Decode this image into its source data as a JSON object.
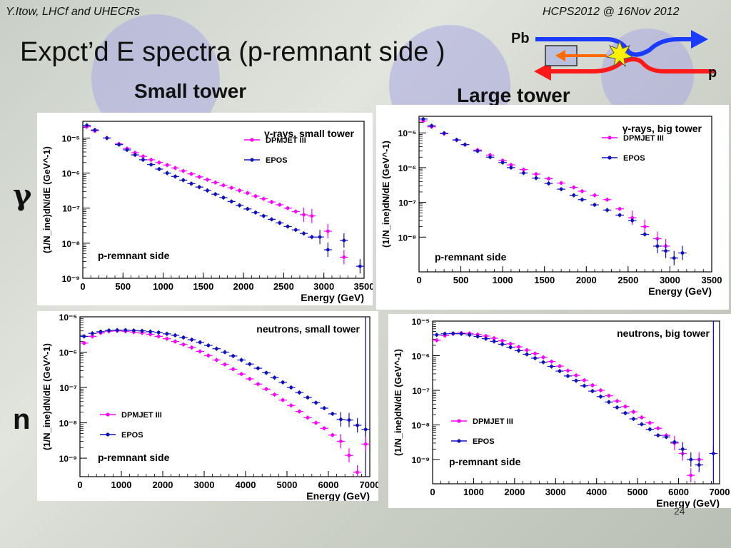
{
  "header": {
    "left": "Y.Itow,  LHCf and UHECRs",
    "right": "HCPS2012 @ 16Nov 2012"
  },
  "slide": {
    "title": "Expct’d E spectra (p-remnant side )",
    "small_tower_label": "Small tower",
    "large_tower_label": "Large tower",
    "row_gamma": "γ",
    "row_neutron": "n",
    "page_number": "24"
  },
  "diagram": {
    "pb_label": "Pb",
    "p_label": "p",
    "colors": {
      "pb": "#1a3bff",
      "p": "#ff1a1a",
      "arrow": "#ff6a00",
      "flash": "#fff200"
    }
  },
  "colors": {
    "dpmjet": "#ff00ff",
    "epos": "#1010c0"
  },
  "chart_data": [
    {
      "type": "scatter",
      "title": "γ-rays, small tower",
      "annotation": "p-remnant side",
      "xlabel": "Energy (GeV)",
      "ylabel": "(1/N_ine)dN/dE (GeV^-1)",
      "xlim": [
        0,
        3500
      ],
      "ylim": [
        1e-09,
        3e-05
      ],
      "yscale": "log",
      "xticks": [
        0,
        500,
        1000,
        1500,
        2000,
        2500,
        3000,
        3500
      ],
      "yticks": [
        {
          "v": 1e-09,
          "t": "10⁻⁹"
        },
        {
          "v": 1e-08,
          "t": "10⁻⁸"
        },
        {
          "v": 1e-07,
          "t": "10⁻⁷"
        },
        {
          "v": 1e-06,
          "t": "10⁻⁶"
        },
        {
          "v": 1e-05,
          "t": "10⁻⁵"
        }
      ],
      "legend_position": "top-right",
      "series": [
        {
          "name": "DPMJET III",
          "color": "#ff00ff",
          "x": [
            50,
            150,
            300,
            450,
            550,
            650,
            750,
            850,
            950,
            1050,
            1150,
            1250,
            1350,
            1450,
            1550,
            1650,
            1750,
            1850,
            1950,
            2050,
            2150,
            2250,
            2350,
            2450,
            2550,
            2650,
            2750,
            2850,
            3050,
            3250
          ],
          "y": [
            2.1e-05,
            1.6e-05,
            1e-05,
            6.8e-06,
            5e-06,
            3.8e-06,
            3e-06,
            2.4e-06,
            2e-06,
            1.7e-06,
            1.4e-06,
            1.15e-06,
            9.5e-07,
            7.8e-07,
            6.5e-07,
            5.4e-07,
            4.5e-07,
            3.8e-07,
            3.2e-07,
            2.7e-07,
            2.2e-07,
            1.85e-07,
            1.5e-07,
            1.25e-07,
            1e-07,
            8e-08,
            6.5e-08,
            6e-08,
            2.2e-08,
            4e-09
          ]
        },
        {
          "name": "EPOS",
          "color": "#1010c0",
          "x": [
            50,
            150,
            300,
            450,
            550,
            650,
            750,
            850,
            950,
            1050,
            1150,
            1250,
            1350,
            1450,
            1550,
            1650,
            1750,
            1850,
            1950,
            2050,
            2150,
            2250,
            2350,
            2450,
            2550,
            2650,
            2750,
            2850,
            2950,
            3050,
            3250,
            3450
          ],
          "y": [
            2.3e-05,
            1.7e-05,
            1e-05,
            6.5e-06,
            4.6e-06,
            3.3e-06,
            2.4e-06,
            1.75e-06,
            1.3e-06,
            1e-06,
            8e-07,
            6.3e-07,
            5e-07,
            4e-07,
            3.2e-07,
            2.5e-07,
            2e-07,
            1.55e-07,
            1.2e-07,
            9.5e-08,
            7.5e-08,
            6e-08,
            4.8e-08,
            3.8e-08,
            3e-08,
            2.4e-08,
            1.9e-08,
            1.5e-08,
            1.5e-08,
            6.5e-09,
            1.2e-08,
            2.2e-09
          ]
        }
      ]
    },
    {
      "type": "scatter",
      "title": "γ-rays, big tower",
      "annotation": "p-remnant side",
      "xlabel": "Energy (GeV)",
      "ylabel": "(1/N_ine)dN/dE (GeV^-1)",
      "xlim": [
        0,
        3500
      ],
      "ylim": [
        1e-09,
        3e-05
      ],
      "yscale": "log",
      "xticks": [
        0,
        500,
        1000,
        1500,
        2000,
        2500,
        3000,
        3500
      ],
      "yticks": [
        {
          "v": 1e-08,
          "t": "10⁻⁸"
        },
        {
          "v": 1e-07,
          "t": "10⁻⁷"
        },
        {
          "v": 1e-06,
          "t": "10⁻⁶"
        },
        {
          "v": 1e-05,
          "t": "10⁻⁵"
        }
      ],
      "legend_position": "top-right",
      "series": [
        {
          "name": "DPMJET III",
          "color": "#ff00ff",
          "x": [
            50,
            150,
            300,
            450,
            550,
            700,
            850,
            1000,
            1100,
            1250,
            1400,
            1550,
            1700,
            1850,
            1950,
            2100,
            2250,
            2400,
            2550,
            2700,
            2850,
            2950
          ],
          "y": [
            2.2e-05,
            1.5e-05,
            9.5e-06,
            6.2e-06,
            4.6e-06,
            3.2e-06,
            2.3e-06,
            1.6e-06,
            1.2e-06,
            8.8e-07,
            6.5e-07,
            4.8e-07,
            3.6e-07,
            2.7e-07,
            2.1e-07,
            1.6e-07,
            1.2e-07,
            6.5e-08,
            3.6e-08,
            2e-08,
            9e-09,
            5.5e-09
          ]
        },
        {
          "name": "EPOS",
          "color": "#1010c0",
          "x": [
            50,
            150,
            300,
            450,
            550,
            700,
            850,
            1000,
            1100,
            1250,
            1400,
            1550,
            1700,
            1850,
            1950,
            2100,
            2250,
            2400,
            2550,
            2700,
            2850,
            2950,
            3050,
            3150
          ],
          "y": [
            2.5e-05,
            1.6e-05,
            9.8e-06,
            6.3e-06,
            4.6e-06,
            3e-06,
            2e-06,
            1.4e-06,
            1e-06,
            7e-07,
            5e-07,
            3.5e-07,
            2.4e-07,
            1.6e-07,
            1.2e-07,
            8.5e-08,
            6e-08,
            4.3e-08,
            3e-08,
            1.2e-08,
            5.5e-09,
            4e-09,
            2.5e-09,
            3.5e-09
          ]
        }
      ]
    },
    {
      "type": "scatter",
      "title": "neutrons, small tower",
      "annotation": "p-remnant side",
      "xlabel": "Energy (GeV)",
      "ylabel": "(1/N_ine)dN/dE (GeV^-1)",
      "xlim": [
        0,
        7000
      ],
      "ylim": [
        3e-10,
        1e-05
      ],
      "yscale": "log",
      "xticks": [
        0,
        1000,
        2000,
        3000,
        4000,
        5000,
        6000,
        7000
      ],
      "yticks": [
        {
          "v": 1e-09,
          "t": "10⁻⁹"
        },
        {
          "v": 1e-08,
          "t": "10⁻⁸"
        },
        {
          "v": 1e-07,
          "t": "10⁻⁷"
        },
        {
          "v": 1e-06,
          "t": "10⁻⁶"
        },
        {
          "v": 1e-05,
          "t": "10⁻⁵"
        }
      ],
      "legend_position": "bottom-left",
      "vline_x": 6900,
      "series": [
        {
          "name": "DPMJET III",
          "color": "#ff00ff",
          "x": [
            100,
            300,
            500,
            700,
            900,
            1100,
            1300,
            1500,
            1700,
            1900,
            2100,
            2300,
            2500,
            2700,
            2900,
            3100,
            3300,
            3500,
            3700,
            3900,
            4100,
            4300,
            4500,
            4700,
            4900,
            5100,
            5300,
            5500,
            5700,
            5900,
            6100,
            6300,
            6500,
            6700,
            6900
          ],
          "y": [
            1.8e-06,
            2.8e-06,
            3.5e-06,
            3.9e-06,
            4e-06,
            3.9e-06,
            3.7e-06,
            3.5e-06,
            3.2e-06,
            2.8e-06,
            2.4e-06,
            2e-06,
            1.65e-06,
            1.35e-06,
            1.05e-06,
            8e-07,
            6e-07,
            4.5e-07,
            3.3e-07,
            2.4e-07,
            1.75e-07,
            1.25e-07,
            9e-08,
            6.3e-08,
            4.4e-08,
            3.1e-08,
            2.1e-08,
            1.4e-08,
            1e-08,
            7e-09,
            4.5e-09,
            3e-09,
            1.2e-09,
            4e-10,
            2.5e-09
          ]
        },
        {
          "name": "EPOS",
          "color": "#1010c0",
          "x": [
            100,
            300,
            500,
            700,
            900,
            1100,
            1300,
            1500,
            1700,
            1900,
            2100,
            2300,
            2500,
            2700,
            2900,
            3100,
            3300,
            3500,
            3700,
            3900,
            4100,
            4300,
            4500,
            4700,
            4900,
            5100,
            5300,
            5500,
            5700,
            5900,
            6100,
            6300,
            6500,
            6700,
            6900
          ],
          "y": [
            2.8e-06,
            3.4e-06,
            3.8e-06,
            4.1e-06,
            4.2e-06,
            4.2e-06,
            4.1e-06,
            4e-06,
            3.8e-06,
            3.6e-06,
            3.3e-06,
            3e-06,
            2.6e-06,
            2.25e-06,
            1.9e-06,
            1.55e-06,
            1.25e-06,
            1e-06,
            7.8e-07,
            6e-07,
            4.6e-07,
            3.5e-07,
            2.6e-07,
            1.9e-07,
            1.4e-07,
            1e-07,
            7.2e-08,
            5.2e-08,
            3.7e-08,
            2.6e-08,
            1.8e-08,
            1.25e-08,
            1.2e-08,
            8.5e-09,
            6.5e-09
          ]
        }
      ]
    },
    {
      "type": "scatter",
      "title": "neutrons, big tower",
      "annotation": "p-remnant side",
      "xlabel": "Energy (GeV)",
      "ylabel": "(1/N_ine)dN/dE (GeV^-1)",
      "xlim": [
        0,
        7000
      ],
      "ylim": [
        2e-10,
        1e-05
      ],
      "yscale": "log",
      "xticks": [
        0,
        1000,
        2000,
        3000,
        4000,
        5000,
        6000,
        7000
      ],
      "yticks": [
        {
          "v": 1e-09,
          "t": "10⁻⁹"
        },
        {
          "v": 1e-08,
          "t": "10⁻⁸"
        },
        {
          "v": 1e-07,
          "t": "10⁻⁷"
        },
        {
          "v": 1e-06,
          "t": "10⁻⁶"
        },
        {
          "v": 1e-05,
          "t": "10⁻⁵"
        }
      ],
      "legend_position": "bottom-left",
      "vline_x": 6850,
      "series": [
        {
          "name": "DPMJET III",
          "color": "#ff00ff",
          "x": [
            100,
            300,
            500,
            700,
            900,
            1100,
            1300,
            1500,
            1700,
            1900,
            2100,
            2300,
            2500,
            2700,
            2900,
            3100,
            3300,
            3500,
            3700,
            3900,
            4100,
            4300,
            4500,
            4700,
            4900,
            5100,
            5300,
            5500,
            5700,
            5900,
            6100,
            6300,
            6500
          ],
          "y": [
            2.8e-06,
            3.8e-06,
            4.3e-06,
            4.5e-06,
            4.4e-06,
            4.1e-06,
            3.7e-06,
            3.2e-06,
            2.7e-06,
            2.2e-06,
            1.8e-06,
            1.45e-06,
            1.15e-06,
            9e-07,
            6.8e-07,
            5e-07,
            3.7e-07,
            2.7e-07,
            1.95e-07,
            1.4e-07,
            1e-07,
            7e-08,
            4.9e-08,
            3.4e-08,
            2.4e-08,
            1.65e-08,
            1.15e-08,
            8e-09,
            5e-09,
            3e-09,
            1.5e-09,
            3.5e-10,
            1e-09
          ]
        },
        {
          "name": "EPOS",
          "color": "#1010c0",
          "x": [
            100,
            300,
            500,
            700,
            900,
            1100,
            1300,
            1500,
            1700,
            1900,
            2100,
            2300,
            2500,
            2700,
            2900,
            3100,
            3300,
            3500,
            3700,
            3900,
            4100,
            4300,
            4500,
            4700,
            4900,
            5100,
            5300,
            5500,
            5700,
            5900,
            6100,
            6300,
            6500,
            6850
          ],
          "y": [
            4e-06,
            4.3e-06,
            4.4e-06,
            4.3e-06,
            4e-06,
            3.6e-06,
            3.1e-06,
            2.6e-06,
            2.15e-06,
            1.75e-06,
            1.4e-06,
            1.1e-06,
            8.5e-07,
            6.5e-07,
            4.9e-07,
            3.6e-07,
            2.6e-07,
            1.9e-07,
            1.35e-07,
            9.5e-08,
            6.6e-08,
            4.6e-08,
            3.2e-08,
            2.2e-08,
            1.5e-08,
            1.05e-08,
            7.5e-09,
            5e-09,
            4.5e-09,
            3.2e-09,
            2e-09,
            1e-09,
            7e-10,
            1.5e-09
          ]
        }
      ]
    }
  ]
}
